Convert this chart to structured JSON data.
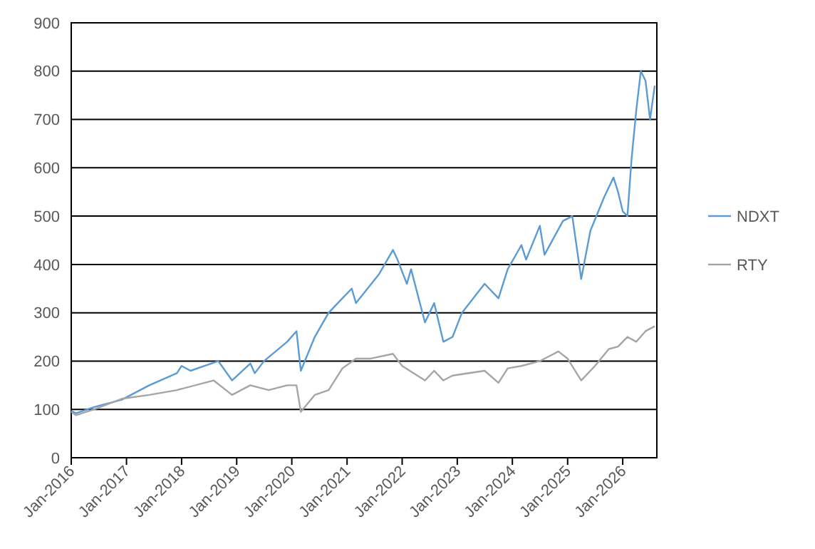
{
  "chart_data": {
    "type": "line",
    "xlim": [
      "2016-01-01",
      "2026-08-15"
    ],
    "ylim": [
      0,
      900
    ],
    "yticks": [
      0,
      100,
      200,
      300,
      400,
      500,
      600,
      700,
      800,
      900
    ],
    "xticks": [
      {
        "value": "2016-01",
        "label": "Jan-2016"
      },
      {
        "value": "2017-01",
        "label": "Jan-2017"
      },
      {
        "value": "2018-01",
        "label": "Jan-2018"
      },
      {
        "value": "2019-01",
        "label": "Jan-2019"
      },
      {
        "value": "2020-01",
        "label": "Jan-2020"
      },
      {
        "value": "2021-01",
        "label": "Jan-2021"
      },
      {
        "value": "2022-01",
        "label": "Jan-2022"
      },
      {
        "value": "2023-01",
        "label": "Jan-2023"
      },
      {
        "value": "2024-01",
        "label": "Jan-2024"
      },
      {
        "value": "2025-01",
        "label": "Jan-2025"
      },
      {
        "value": "2026-01",
        "label": "Jan-2026"
      }
    ],
    "grid": "y",
    "legend": "right",
    "marker": "none",
    "line_style": "solid",
    "series": [
      {
        "name": "NDXT",
        "color": "#5b9bd5",
        "x": [
          "2016-01",
          "2016-02",
          "2016-06",
          "2016-12",
          "2017-06",
          "2017-12",
          "2018-01",
          "2018-03",
          "2018-09",
          "2018-12",
          "2019-04",
          "2019-05",
          "2019-07",
          "2019-12",
          "2020-02",
          "2020-03",
          "2020-06",
          "2020-09",
          "2020-12",
          "2021-02",
          "2021-03",
          "2021-08",
          "2021-11",
          "2021-12",
          "2022-02",
          "2022-03",
          "2022-06",
          "2022-08",
          "2022-10",
          "2022-12",
          "2023-02",
          "2023-07",
          "2023-10",
          "2023-12",
          "2024-03",
          "2024-04",
          "2024-07",
          "2024-08",
          "2024-12",
          "2025-02",
          "2025-04",
          "2025-06",
          "2025-09",
          "2025-11",
          "2025-12",
          "2026-01",
          "2026-02",
          "2026-03",
          "2026-04",
          "2026-05",
          "2026-06",
          "2026-07",
          "2026-08"
        ],
        "values": [
          97,
          92,
          105,
          120,
          150,
          175,
          190,
          180,
          200,
          160,
          195,
          175,
          200,
          240,
          262,
          180,
          250,
          300,
          330,
          350,
          320,
          380,
          430,
          410,
          360,
          390,
          280,
          320,
          240,
          250,
          300,
          360,
          330,
          390,
          440,
          410,
          480,
          420,
          490,
          500,
          370,
          470,
          540,
          580,
          550,
          510,
          500,
          620,
          720,
          800,
          780,
          700,
          770
        ]
      },
      {
        "name": "RTY",
        "color": "#a5a5a5",
        "x": [
          "2016-01",
          "2016-02",
          "2016-06",
          "2016-12",
          "2017-06",
          "2017-12",
          "2018-08",
          "2018-12",
          "2019-04",
          "2019-08",
          "2019-12",
          "2020-02",
          "2020-03",
          "2020-06",
          "2020-09",
          "2020-12",
          "2021-03",
          "2021-06",
          "2021-11",
          "2022-01",
          "2022-06",
          "2022-08",
          "2022-10",
          "2022-12",
          "2023-07",
          "2023-10",
          "2023-12",
          "2024-03",
          "2024-07",
          "2024-11",
          "2025-01",
          "2025-04",
          "2025-07",
          "2025-10",
          "2025-12",
          "2026-02",
          "2026-04",
          "2026-06",
          "2026-08"
        ],
        "values": [
          95,
          88,
          100,
          122,
          130,
          140,
          160,
          130,
          150,
          140,
          150,
          150,
          95,
          130,
          140,
          185,
          205,
          205,
          215,
          190,
          160,
          180,
          160,
          170,
          180,
          155,
          185,
          190,
          200,
          220,
          205,
          160,
          190,
          225,
          230,
          250,
          240,
          262,
          272
        ]
      }
    ]
  }
}
